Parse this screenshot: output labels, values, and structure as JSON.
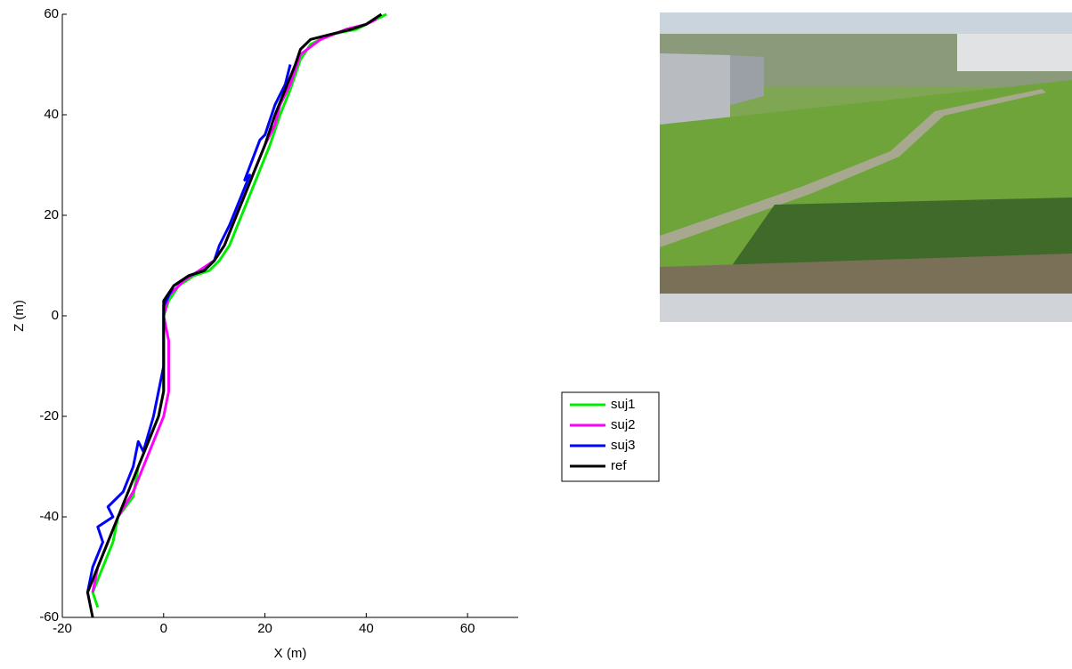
{
  "chart_data": {
    "type": "line",
    "xlabel": "X (m)",
    "ylabel": "Z (m)",
    "xlim": [
      -20,
      70
    ],
    "xticks": [
      -20,
      0,
      20,
      40,
      60
    ],
    "ylim": [
      -60,
      60
    ],
    "yticks": [
      -60,
      -40,
      -20,
      0,
      20,
      40,
      60
    ],
    "grid": false,
    "legend": "right",
    "series": [
      {
        "name": "suj1",
        "color": "#00ee00",
        "x": [
          -13,
          -14,
          -12,
          -10,
          -9,
          -6,
          -5,
          -3,
          -1,
          0,
          0,
          0,
          0,
          1,
          3,
          6,
          9,
          11,
          13,
          15,
          17,
          19,
          21,
          23,
          25,
          27,
          29,
          33,
          38,
          42,
          44
        ],
        "values": [
          -58,
          -55,
          -50,
          -45,
          -40,
          -36,
          -30,
          -25,
          -20,
          -15,
          -10,
          -5,
          0,
          3,
          6,
          8,
          9,
          11,
          14,
          19,
          24,
          29,
          34,
          40,
          45,
          51,
          54,
          56,
          57,
          59,
          60
        ]
      },
      {
        "name": "suj2",
        "color": "#ff00ff",
        "x": [
          -14,
          -13,
          -11,
          -9,
          -6,
          -4,
          -2,
          0,
          1,
          1,
          1,
          0,
          1,
          4,
          7,
          10,
          12,
          14,
          16,
          18,
          20,
          22,
          23,
          25,
          27,
          31,
          36,
          40,
          42
        ],
        "values": [
          -55,
          -50,
          -45,
          -40,
          -35,
          -30,
          -25,
          -20,
          -15,
          -10,
          -5,
          0,
          4,
          7,
          9,
          11,
          14,
          19,
          24,
          29,
          34,
          38,
          42,
          46,
          52,
          55,
          57,
          58,
          59
        ]
      },
      {
        "name": "suj3",
        "color": "#0000ff",
        "x": [
          -15,
          -14,
          -12,
          -13,
          -10,
          -11,
          -8,
          -6,
          -5,
          -4,
          -2,
          -1,
          0,
          0,
          0,
          2,
          5,
          8,
          10,
          11,
          13,
          15,
          17,
          16,
          19,
          20,
          22,
          24,
          25
        ],
        "values": [
          -55,
          -50,
          -45,
          -42,
          -40,
          -38,
          -35,
          -30,
          -25,
          -27,
          -20,
          -15,
          -10,
          -5,
          2,
          6,
          8,
          9,
          11,
          14,
          18,
          23,
          28,
          27,
          35,
          36,
          42,
          46,
          50
        ]
      },
      {
        "name": "ref",
        "color": "#000000",
        "x": [
          -14,
          -15,
          -13,
          -11,
          -9,
          -7,
          -5,
          -3,
          -1,
          0,
          0,
          0,
          0,
          0,
          2,
          5,
          8,
          10,
          12,
          14,
          16,
          18,
          20,
          22,
          24,
          26,
          27,
          29,
          33,
          37,
          40,
          43
        ],
        "values": [
          -60,
          -55,
          -50,
          -45,
          -40,
          -35,
          -30,
          -25,
          -20,
          -15,
          -10,
          -5,
          0,
          3,
          6,
          8,
          9,
          11,
          14,
          19,
          24,
          29,
          34,
          40,
          45,
          50,
          53,
          55,
          56,
          57,
          58,
          60
        ]
      }
    ]
  }
}
